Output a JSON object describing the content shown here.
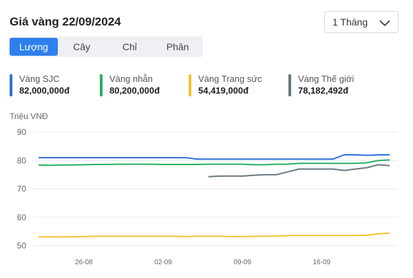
{
  "header": {
    "title": "Giá vàng 22/09/2024"
  },
  "range_select": {
    "value": "1 Tháng",
    "icon": "chevron-down-icon"
  },
  "tabs": [
    {
      "label": "Lượng",
      "active": true
    },
    {
      "label": "Cây",
      "active": false
    },
    {
      "label": "Chỉ",
      "active": false
    },
    {
      "label": "Phân",
      "active": false
    }
  ],
  "legend": [
    {
      "name": "Vàng SJC",
      "value": "82,000,000đ",
      "color": "#2f6fd6"
    },
    {
      "name": "Vàng nhẫn",
      "value": "80,200,000đ",
      "color": "#27ae60"
    },
    {
      "name": "Vàng Trang sức",
      "value": "54,419,000đ",
      "color": "#f2c230"
    },
    {
      "name": "Vàng Thế giới",
      "value": "78,182,492đ",
      "color": "#6b7780"
    }
  ],
  "chart_data": {
    "type": "line",
    "ylabel": "Triệu VNĐ",
    "ylim": [
      50,
      90
    ],
    "yticks": [
      90,
      80,
      70,
      60,
      50
    ],
    "x": [
      "22-08",
      "23-08",
      "24-08",
      "25-08",
      "26-08",
      "27-08",
      "28-08",
      "29-08",
      "30-08",
      "31-08",
      "01-09",
      "02-09",
      "03-09",
      "04-09",
      "05-09",
      "06-09",
      "07-09",
      "08-09",
      "09-09",
      "10-09",
      "11-09",
      "12-09",
      "13-09",
      "14-09",
      "15-09",
      "16-09",
      "17-09",
      "18-09",
      "19-09",
      "20-09",
      "21-09",
      "22-09"
    ],
    "xticks": [
      "26-08",
      "02-09",
      "09-09",
      "16-09"
    ],
    "grid": true,
    "series": [
      {
        "name": "Vàng SJC",
        "color": "#2f6fd6",
        "values": [
          81,
          81,
          81,
          81,
          81,
          81,
          81,
          81,
          81,
          81,
          81,
          81,
          81,
          81,
          80.5,
          80.5,
          80.5,
          80.5,
          80.5,
          80.5,
          80.5,
          80.5,
          80.5,
          80.5,
          80.5,
          80.5,
          80.5,
          82,
          82,
          81.8,
          82,
          82
        ]
      },
      {
        "name": "Vàng nhẫn",
        "color": "#27ae60",
        "values": [
          78.4,
          78.3,
          78.4,
          78.4,
          78.5,
          78.6,
          78.6,
          78.7,
          78.7,
          78.7,
          78.7,
          78.6,
          78.6,
          78.6,
          78.6,
          78.7,
          78.7,
          78.7,
          78.7,
          78.5,
          78.5,
          78.7,
          78.7,
          79,
          79,
          79,
          79,
          79,
          79,
          79.2,
          80,
          80.2
        ]
      },
      {
        "name": "Vàng Trang sức",
        "color": "#f2c230",
        "values": [
          53.1,
          53.1,
          53.1,
          53.1,
          53.2,
          53.3,
          53.3,
          53.3,
          53.3,
          53.3,
          53.3,
          53.3,
          53.3,
          53.2,
          53.3,
          53.3,
          53.3,
          53.2,
          53.2,
          53.3,
          53.3,
          53.4,
          53.6,
          53.6,
          53.6,
          53.6,
          53.6,
          53.6,
          53.6,
          53.7,
          54.2,
          54.4
        ]
      },
      {
        "name": "Vàng Thế giới",
        "color": "#6b7780",
        "values": [
          null,
          null,
          null,
          null,
          null,
          null,
          null,
          null,
          null,
          null,
          null,
          null,
          null,
          null,
          null,
          74.3,
          74.5,
          74.5,
          74.5,
          74.8,
          75,
          75,
          76,
          77,
          77,
          77,
          77,
          76.5,
          77,
          77.5,
          78.5,
          78.2
        ]
      }
    ]
  }
}
